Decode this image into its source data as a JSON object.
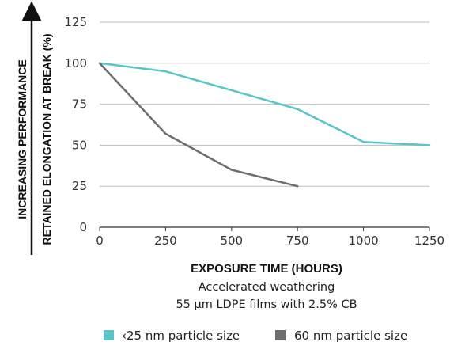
{
  "chart_data": {
    "type": "line",
    "ylabel_outer": "INCREASING PERFORMANCE",
    "ylabel": "RETAINED ELONGATION AT BREAK (%)",
    "xlabel": "EXPOSURE TIME (HOURS)",
    "subtitle_lines": [
      "Accelerated weathering",
      "55 µm LDPE films with 2.5% CB"
    ],
    "xlim": [
      0,
      1250
    ],
    "ylim": [
      0,
      125
    ],
    "xticks": [
      0,
      250,
      500,
      750,
      1000,
      1250
    ],
    "yticks": [
      0,
      25,
      50,
      75,
      100,
      125
    ],
    "grid": true,
    "legend_position": "bottom",
    "series": [
      {
        "name": "‹25 nm particle size",
        "color": "#5bc4c9",
        "x": [
          0,
          250,
          750,
          1000,
          1250
        ],
        "y": [
          100,
          95,
          72,
          52,
          50
        ]
      },
      {
        "name": "60 nm particle size",
        "color": "#6e6e6e",
        "x": [
          0,
          250,
          500,
          750
        ],
        "y": [
          100,
          57,
          35,
          25
        ]
      }
    ]
  }
}
